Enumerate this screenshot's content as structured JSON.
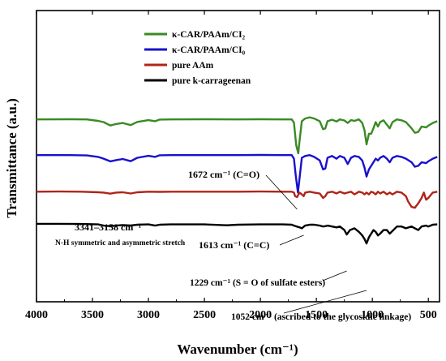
{
  "chart_data": {
    "type": "line",
    "xlabel": "Wavenumber (cm⁻¹)",
    "ylabel": "Transmittance (a.u.)",
    "xlim": [
      4000,
      400
    ],
    "xticks": [
      "4000",
      "3500",
      "3000",
      "2500",
      "2000",
      "1500",
      "1000",
      "500"
    ],
    "xtick_values": [
      4000,
      3500,
      3000,
      2500,
      2000,
      1500,
      1000,
      500
    ],
    "grid": false,
    "legend_position": "top-center",
    "series": [
      {
        "name": "κ-CAR/PAAm/CI₂",
        "color": "#3a8a24",
        "offset": 4.2,
        "points": [
          [
            4000,
            0.2
          ],
          [
            3700,
            0.21
          ],
          [
            3550,
            0.2
          ],
          [
            3450,
            0.12
          ],
          [
            3400,
            0.05
          ],
          [
            3341,
            -0.14
          ],
          [
            3290,
            -0.06
          ],
          [
            3230,
            0.0
          ],
          [
            3158,
            -0.12
          ],
          [
            3100,
            0.06
          ],
          [
            3000,
            0.16
          ],
          [
            2940,
            0.1
          ],
          [
            2900,
            0.19
          ],
          [
            2800,
            0.2
          ],
          [
            2500,
            0.21
          ],
          [
            2200,
            0.2
          ],
          [
            2000,
            0.21
          ],
          [
            1800,
            0.2
          ],
          [
            1720,
            0.2
          ],
          [
            1700,
            0.02
          ],
          [
            1680,
            -1.25
          ],
          [
            1662,
            -1.7
          ],
          [
            1650,
            -1.0
          ],
          [
            1630,
            0.1
          ],
          [
            1600,
            0.25
          ],
          [
            1560,
            0.32
          ],
          [
            1520,
            0.25
          ],
          [
            1470,
            0.1
          ],
          [
            1440,
            -0.35
          ],
          [
            1420,
            -0.3
          ],
          [
            1400,
            0.1
          ],
          [
            1360,
            0.18
          ],
          [
            1320,
            0.08
          ],
          [
            1290,
            0.2
          ],
          [
            1250,
            0.14
          ],
          [
            1220,
            0.0
          ],
          [
            1190,
            0.16
          ],
          [
            1160,
            0.12
          ],
          [
            1120,
            0.2
          ],
          [
            1090,
            0.0
          ],
          [
            1070,
            -0.4
          ],
          [
            1052,
            -1.2
          ],
          [
            1030,
            -0.6
          ],
          [
            1010,
            -0.6
          ],
          [
            990,
            -0.3
          ],
          [
            970,
            0.05
          ],
          [
            950,
            -0.2
          ],
          [
            930,
            0.05
          ],
          [
            900,
            0.15
          ],
          [
            870,
            -0.1
          ],
          [
            845,
            -0.3
          ],
          [
            820,
            0.05
          ],
          [
            780,
            0.2
          ],
          [
            740,
            0.15
          ],
          [
            700,
            0.05
          ],
          [
            650,
            -0.3
          ],
          [
            620,
            -0.55
          ],
          [
            590,
            -0.5
          ],
          [
            560,
            -0.2
          ],
          [
            520,
            -0.25
          ],
          [
            500,
            -0.15
          ],
          [
            460,
            0.0
          ],
          [
            420,
            0.1
          ]
        ]
      },
      {
        "name": "κ-CAR/PAAm/CI₀",
        "color": "#1a10cc",
        "offset": 2.2,
        "points": [
          [
            4000,
            0.2
          ],
          [
            3700,
            0.2
          ],
          [
            3550,
            0.18
          ],
          [
            3450,
            0.1
          ],
          [
            3400,
            0.0
          ],
          [
            3341,
            -0.15
          ],
          [
            3290,
            -0.08
          ],
          [
            3230,
            -0.02
          ],
          [
            3158,
            -0.14
          ],
          [
            3100,
            0.05
          ],
          [
            3000,
            0.16
          ],
          [
            2940,
            0.1
          ],
          [
            2900,
            0.19
          ],
          [
            2800,
            0.2
          ],
          [
            2500,
            0.2
          ],
          [
            2200,
            0.2
          ],
          [
            2000,
            0.21
          ],
          [
            1800,
            0.2
          ],
          [
            1720,
            0.2
          ],
          [
            1700,
            0.0
          ],
          [
            1685,
            -0.9
          ],
          [
            1665,
            -1.9
          ],
          [
            1650,
            -1.1
          ],
          [
            1630,
            0.05
          ],
          [
            1600,
            0.15
          ],
          [
            1560,
            0.2
          ],
          [
            1520,
            0.1
          ],
          [
            1470,
            -0.1
          ],
          [
            1440,
            -0.6
          ],
          [
            1420,
            -0.55
          ],
          [
            1400,
            0.05
          ],
          [
            1360,
            0.15
          ],
          [
            1320,
            0.0
          ],
          [
            1290,
            0.15
          ],
          [
            1250,
            0.05
          ],
          [
            1220,
            -0.3
          ],
          [
            1190,
            0.05
          ],
          [
            1160,
            0.15
          ],
          [
            1120,
            0.1
          ],
          [
            1090,
            -0.1
          ],
          [
            1070,
            -0.5
          ],
          [
            1052,
            -1.0
          ],
          [
            1030,
            -0.6
          ],
          [
            1010,
            -0.4
          ],
          [
            990,
            -0.2
          ],
          [
            970,
            0.0
          ],
          [
            950,
            -0.1
          ],
          [
            930,
            0.05
          ],
          [
            900,
            0.15
          ],
          [
            870,
            0.0
          ],
          [
            845,
            -0.2
          ],
          [
            820,
            0.05
          ],
          [
            780,
            0.15
          ],
          [
            740,
            0.1
          ],
          [
            700,
            0.0
          ],
          [
            650,
            -0.2
          ],
          [
            620,
            -0.45
          ],
          [
            590,
            -0.4
          ],
          [
            560,
            -0.2
          ],
          [
            520,
            -0.25
          ],
          [
            500,
            -0.15
          ],
          [
            460,
            0.0
          ],
          [
            420,
            0.1
          ]
        ]
      },
      {
        "name": "pure AAm",
        "color": "#b02418",
        "offset": 0.3,
        "points": [
          [
            4000,
            0.05
          ],
          [
            3800,
            0.06
          ],
          [
            3600,
            0.05
          ],
          [
            3450,
            0.02
          ],
          [
            3400,
            0.0
          ],
          [
            3341,
            -0.06
          ],
          [
            3290,
            0.0
          ],
          [
            3230,
            0.02
          ],
          [
            3158,
            -0.05
          ],
          [
            3100,
            0.02
          ],
          [
            3000,
            0.05
          ],
          [
            2900,
            0.04
          ],
          [
            2800,
            0.05
          ],
          [
            2500,
            0.05
          ],
          [
            2200,
            0.05
          ],
          [
            2000,
            0.06
          ],
          [
            1800,
            0.05
          ],
          [
            1720,
            0.05
          ],
          [
            1700,
            0.0
          ],
          [
            1690,
            -0.2
          ],
          [
            1672,
            -0.25
          ],
          [
            1660,
            -0.1
          ],
          [
            1650,
            0.0
          ],
          [
            1630,
            -0.1
          ],
          [
            1613,
            -0.2
          ],
          [
            1600,
            0.0
          ],
          [
            1560,
            0.05
          ],
          [
            1520,
            0.0
          ],
          [
            1470,
            -0.05
          ],
          [
            1440,
            -0.3
          ],
          [
            1420,
            -0.2
          ],
          [
            1400,
            0.0
          ],
          [
            1360,
            0.05
          ],
          [
            1320,
            -0.05
          ],
          [
            1290,
            0.05
          ],
          [
            1250,
            -0.05
          ],
          [
            1220,
            0.0
          ],
          [
            1190,
            0.05
          ],
          [
            1160,
            -0.1
          ],
          [
            1120,
            0.05
          ],
          [
            1090,
            0.0
          ],
          [
            1070,
            -0.1
          ],
          [
            1052,
            0.0
          ],
          [
            1030,
            -0.1
          ],
          [
            1010,
            0.05
          ],
          [
            990,
            0.0
          ],
          [
            970,
            -0.1
          ],
          [
            950,
            0.05
          ],
          [
            930,
            -0.05
          ],
          [
            900,
            0.05
          ],
          [
            870,
            -0.1
          ],
          [
            845,
            0.0
          ],
          [
            820,
            -0.1
          ],
          [
            780,
            0.05
          ],
          [
            740,
            0.0
          ],
          [
            700,
            -0.2
          ],
          [
            680,
            -0.5
          ],
          [
            650,
            -0.8
          ],
          [
            620,
            -0.85
          ],
          [
            590,
            -0.6
          ],
          [
            560,
            -0.3
          ],
          [
            540,
            0.0
          ],
          [
            520,
            -0.4
          ],
          [
            500,
            -0.3
          ],
          [
            460,
            0.0
          ],
          [
            420,
            0.05
          ]
        ]
      },
      {
        "name": "pure k-carrageenan",
        "color": "#000000",
        "offset": -1.5,
        "points": [
          [
            4000,
            0.05
          ],
          [
            3800,
            0.05
          ],
          [
            3600,
            0.04
          ],
          [
            3450,
            0.02
          ],
          [
            3400,
            -0.05
          ],
          [
            3341,
            -0.08
          ],
          [
            3290,
            -0.05
          ],
          [
            3230,
            -0.02
          ],
          [
            3158,
            -0.04
          ],
          [
            3100,
            0.0
          ],
          [
            3000,
            0.02
          ],
          [
            2940,
            -0.05
          ],
          [
            2900,
            0.0
          ],
          [
            2800,
            0.02
          ],
          [
            2500,
            0.02
          ],
          [
            2300,
            -0.03
          ],
          [
            2200,
            0.0
          ],
          [
            2000,
            0.02
          ],
          [
            1800,
            0.02
          ],
          [
            1720,
            0.0
          ],
          [
            1700,
            -0.05
          ],
          [
            1650,
            -0.15
          ],
          [
            1630,
            -0.2
          ],
          [
            1600,
            -0.05
          ],
          [
            1560,
            0.0
          ],
          [
            1520,
            0.0
          ],
          [
            1470,
            -0.05
          ],
          [
            1440,
            -0.1
          ],
          [
            1420,
            -0.08
          ],
          [
            1400,
            -0.05
          ],
          [
            1360,
            -0.1
          ],
          [
            1320,
            -0.15
          ],
          [
            1290,
            -0.1
          ],
          [
            1250,
            -0.3
          ],
          [
            1229,
            -0.55
          ],
          [
            1200,
            -0.3
          ],
          [
            1160,
            -0.2
          ],
          [
            1120,
            -0.4
          ],
          [
            1090,
            -0.6
          ],
          [
            1070,
            -0.8
          ],
          [
            1052,
            -1.05
          ],
          [
            1030,
            -0.7
          ],
          [
            1010,
            -0.5
          ],
          [
            990,
            -0.3
          ],
          [
            970,
            -0.4
          ],
          [
            950,
            -0.6
          ],
          [
            930,
            -0.5
          ],
          [
            900,
            -0.3
          ],
          [
            870,
            -0.3
          ],
          [
            845,
            -0.5
          ],
          [
            820,
            -0.35
          ],
          [
            780,
            -0.1
          ],
          [
            740,
            -0.1
          ],
          [
            700,
            -0.2
          ],
          [
            650,
            -0.1
          ],
          [
            620,
            -0.2
          ],
          [
            590,
            -0.3
          ],
          [
            560,
            -0.1
          ],
          [
            520,
            -0.05
          ],
          [
            500,
            -0.1
          ],
          [
            460,
            0.0
          ],
          [
            420,
            0.02
          ]
        ]
      }
    ],
    "annotations": [
      {
        "text": "1672 cm⁻¹ (C=O)",
        "x": 1672,
        "series": 1
      },
      {
        "text": "3341–3158 cm⁻¹",
        "x": 3250,
        "series": 2
      },
      {
        "text": "N-H symmetric and asymmetric stretch",
        "x": 3250,
        "series": 2
      },
      {
        "text": "1613 cm⁻¹ (C=C)",
        "x": 1613,
        "series": 2
      },
      {
        "text": "1229 cm⁻¹  (S = O of sulfate esters)",
        "x": 1229,
        "series": 3
      },
      {
        "text": "1052 cm⁻¹ (ascribed to the glycosidic linkage)",
        "x": 1052,
        "series": 3
      }
    ]
  }
}
